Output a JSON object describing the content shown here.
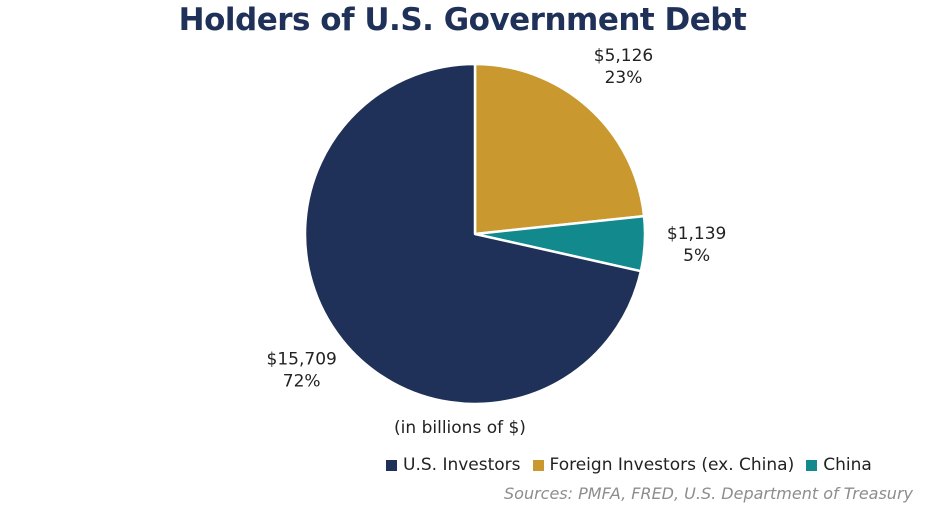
{
  "chart_data": {
    "type": "pie",
    "title": "Holders of U.S. Government Debt",
    "unit_note": "(in billions of $)",
    "source": "Sources: PMFA, FRED, U.S. Department of Treasury",
    "slices": [
      {
        "name": "Foreign Investors (ex. China)",
        "value": 5126,
        "value_label": "$5,126",
        "percent_label": "23%",
        "color": "#c9992f"
      },
      {
        "name": "China",
        "value": 1139,
        "value_label": "$1,139",
        "percent_label": "5%",
        "color": "#12898d"
      },
      {
        "name": "U.S. Investors",
        "value": 15709,
        "value_label": "$15,709",
        "percent_label": "72%",
        "color": "#1f3158"
      }
    ],
    "legend": [
      "U.S. Investors",
      "Foreign Investors (ex. China)",
      "China"
    ],
    "legend_position": "bottom-right"
  }
}
